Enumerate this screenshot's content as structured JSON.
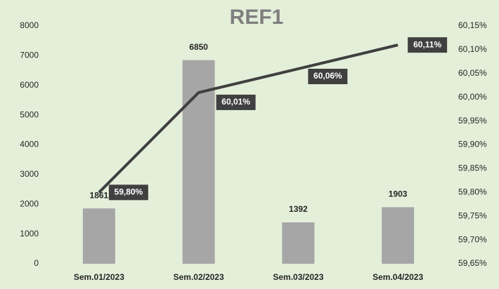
{
  "chart_data": {
    "type": "bar",
    "title": "REF1",
    "categories": [
      "Sem.01/2023",
      "Sem.02/2023",
      "Sem.03/2023",
      "Sem.04/2023"
    ],
    "series": [
      {
        "type": "bar",
        "color": "#a6a6a6",
        "values": [
          1861,
          6850,
          1392,
          1903
        ]
      },
      {
        "type": "line",
        "axis": "y2",
        "color": "#404040",
        "values": [
          59.8,
          60.01,
          60.06,
          60.11
        ],
        "value_labels": [
          "59,80%",
          "60,01%",
          "60,06%",
          "60,11%"
        ]
      }
    ],
    "ylim": [
      0,
      8000
    ],
    "yticks": [
      0,
      1000,
      2000,
      3000,
      4000,
      5000,
      6000,
      7000,
      8000
    ],
    "y2lim": [
      59.65,
      60.15
    ],
    "y2ticks": [
      {
        "value": 59.65,
        "label": "59,65%"
      },
      {
        "value": 59.7,
        "label": "59,70%"
      },
      {
        "value": 59.75,
        "label": "59,75%"
      },
      {
        "value": 59.8,
        "label": "59,80%"
      },
      {
        "value": 59.85,
        "label": "59,85%"
      },
      {
        "value": 59.9,
        "label": "59,90%"
      },
      {
        "value": 59.95,
        "label": "59,95%"
      },
      {
        "value": 60.0,
        "label": "60,00%"
      },
      {
        "value": 60.05,
        "label": "60,05%"
      },
      {
        "value": 60.1,
        "label": "60,10%"
      },
      {
        "value": 60.15,
        "label": "60,15%"
      }
    ],
    "grid": false
  }
}
